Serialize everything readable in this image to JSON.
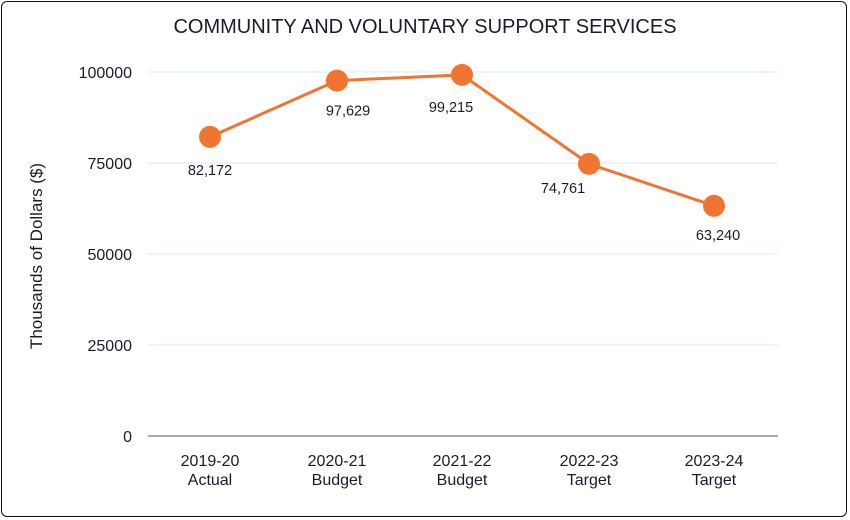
{
  "chart_data": {
    "type": "line",
    "title": "COMMUNITY AND VOLUNTARY SUPPORT SERVICES",
    "ylabel": "Thousands of Dollars ($)",
    "xlabel": "",
    "categories": [
      [
        "2019-20",
        "Actual"
      ],
      [
        "2020-21",
        "Budget"
      ],
      [
        "2021-22",
        "Budget"
      ],
      [
        "2022-23",
        "Target"
      ],
      [
        "2023-24",
        "Target"
      ]
    ],
    "values": [
      82172,
      97629,
      99215,
      74761,
      63240
    ],
    "data_labels": [
      "82,172",
      "97,629",
      "99,215",
      "74,761",
      "63,240"
    ],
    "yticks": [
      0,
      25000,
      50000,
      75000,
      100000
    ],
    "ylim": [
      0,
      100000
    ],
    "grid": true,
    "legend": "none",
    "colors": {
      "line": "#f07432",
      "marker": "#f07432"
    }
  }
}
